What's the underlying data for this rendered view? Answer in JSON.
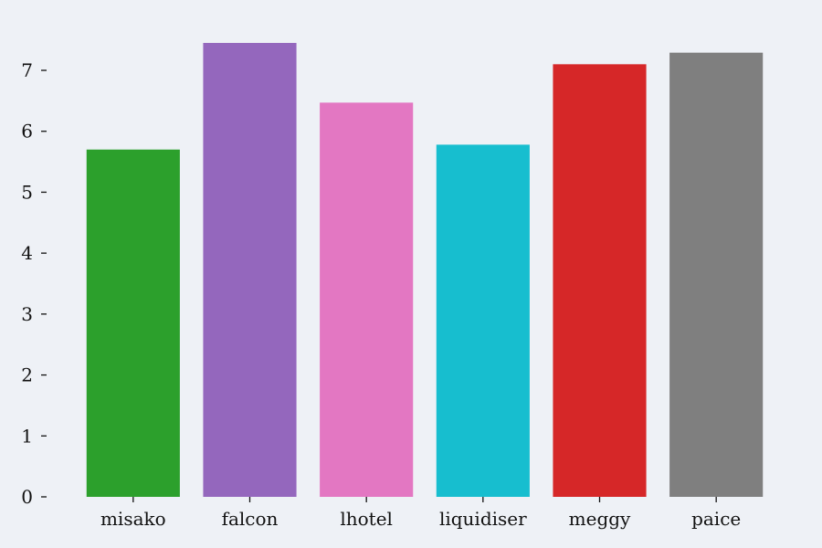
{
  "chart_data": {
    "type": "bar",
    "title": "",
    "xlabel": "",
    "ylabel": "",
    "categories": [
      "misako",
      "falcon",
      "lhotel",
      "liquidiser",
      "meggy",
      "paice"
    ],
    "values": [
      5.7,
      7.45,
      6.47,
      5.78,
      7.1,
      7.29
    ],
    "colors": [
      "#2ca02c",
      "#9467bd",
      "#e377c2",
      "#17becf",
      "#d62728",
      "#7f7f7f"
    ],
    "ylim": [
      0,
      7.45
    ],
    "yticks": [
      0,
      1,
      2,
      3,
      4,
      5,
      6,
      7
    ],
    "grid": false,
    "legend": "none"
  }
}
